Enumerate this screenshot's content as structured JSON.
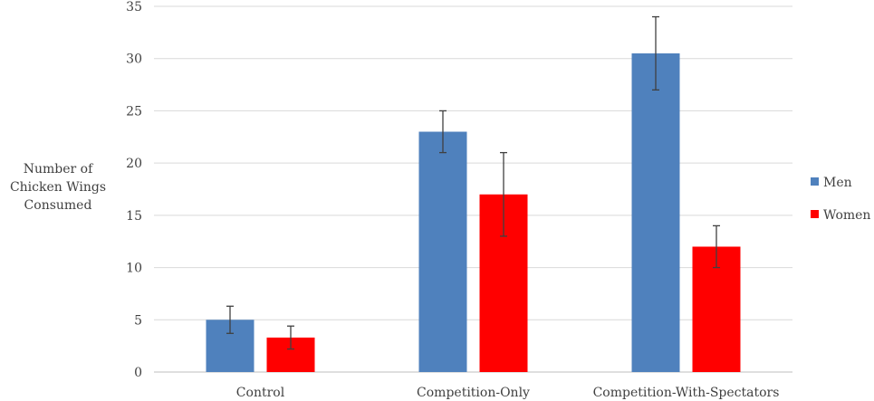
{
  "chart_data": {
    "type": "bar",
    "title": "",
    "xlabel": "",
    "ylabel": [
      "Number of",
      "Chicken Wings",
      "Consumed"
    ],
    "categories": [
      "Control",
      "Competition-Only",
      "Competition-With-Spectators"
    ],
    "ylim": [
      0,
      35
    ],
    "yticks": [
      0,
      5,
      10,
      15,
      20,
      25,
      30,
      35
    ],
    "grid": true,
    "legend": "right",
    "series": [
      {
        "name": "Men",
        "color": "#4F81BD",
        "values": [
          5,
          23,
          30.5
        ],
        "err_low": [
          3.7,
          21,
          27
        ],
        "err_high": [
          6.3,
          25,
          34
        ]
      },
      {
        "name": "Women",
        "color": "#FF0000",
        "values": [
          3.3,
          17,
          12
        ],
        "err_low": [
          2.2,
          13,
          10
        ],
        "err_high": [
          4.4,
          21,
          14
        ]
      }
    ]
  }
}
